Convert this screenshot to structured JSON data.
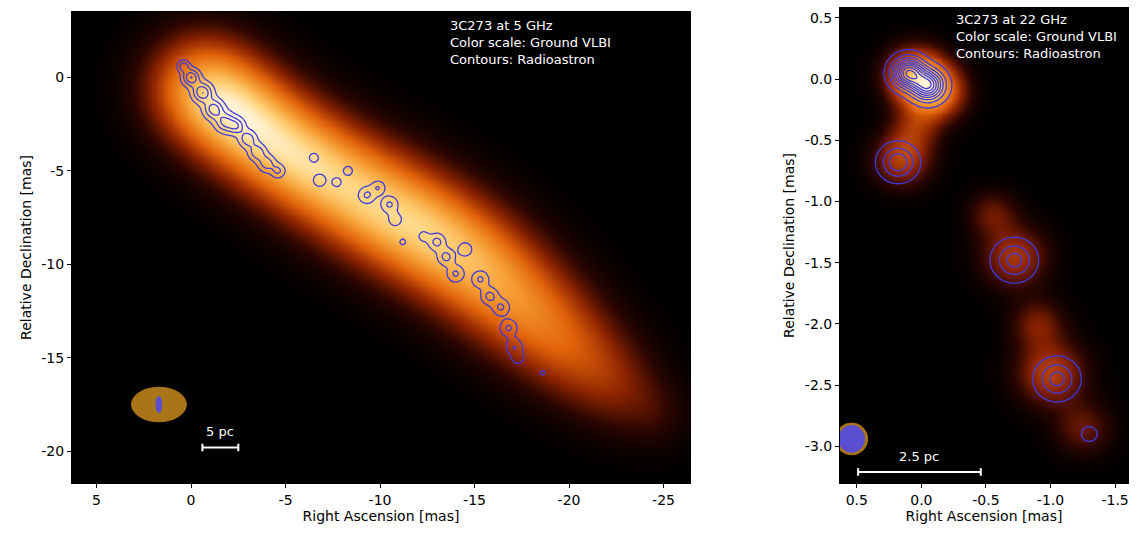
{
  "chart_data": [
    {
      "type": "heatmap",
      "annotations": [
        "3C273 at 5 GHz",
        "Color scale: Ground VLBI",
        "Contours: Radioastron"
      ],
      "annotation_position": {
        "ra": -13.6,
        "dec": 3.3
      },
      "x_label": "Right Ascension [mas]",
      "y_label": "Relative Declination [mas]",
      "xlim": [
        6.3,
        -26.4
      ],
      "ylim": [
        -21.7,
        3.5
      ],
      "xticks": [
        5,
        0,
        -5,
        -10,
        -15,
        -20,
        -25
      ],
      "yticks": [
        0,
        -5,
        -10,
        -15,
        -20
      ],
      "grid": false,
      "ground_vlbi": {
        "components": [
          {
            "ra": -0.5,
            "dec": -0.5,
            "size": 1.9,
            "flux": 1.0
          },
          {
            "ra": -2.5,
            "dec": -2.0,
            "size": 1.9,
            "flux": 0.95
          },
          {
            "ra": -4.5,
            "dec": -3.5,
            "size": 1.9,
            "flux": 0.85
          },
          {
            "ra": -6.5,
            "dec": -4.8,
            "size": 1.9,
            "flux": 0.75
          },
          {
            "ra": -8.5,
            "dec": -6.0,
            "size": 2.0,
            "flux": 0.72
          },
          {
            "ra": -10.5,
            "dec": -7.2,
            "size": 2.0,
            "flux": 0.72
          },
          {
            "ra": -12.5,
            "dec": -8.3,
            "size": 2.0,
            "flux": 0.72
          },
          {
            "ra": -14.5,
            "dec": -9.6,
            "size": 2.0,
            "flux": 0.7
          },
          {
            "ra": -16.5,
            "dec": -11.2,
            "size": 2.0,
            "flux": 0.65
          },
          {
            "ra": -18.5,
            "dec": -13.0,
            "size": 1.9,
            "flux": 0.55
          },
          {
            "ra": -20.5,
            "dec": -14.8,
            "size": 1.8,
            "flux": 0.45
          },
          {
            "ra": -22.5,
            "dec": -16.5,
            "size": 1.6,
            "flux": 0.3
          },
          {
            "ra": -24.5,
            "dec": -18.0,
            "size": 1.3,
            "flux": 0.15
          }
        ]
      },
      "radioastron": {
        "color": "#3c3cdc",
        "levels": {
          "start": 0.15,
          "end": 1.6,
          "step": 0.25
        },
        "components": [
          {
            "ra": 0.4,
            "dec": 0.6,
            "size": 0.2,
            "flux": 0.6
          },
          {
            "ra": 0.0,
            "dec": 0.0,
            "size": 0.3,
            "flux": 0.9
          },
          {
            "ra": -0.6,
            "dec": -0.8,
            "size": 0.35,
            "flux": 0.9
          },
          {
            "ra": -1.2,
            "dec": -1.7,
            "size": 0.35,
            "flux": 0.8
          },
          {
            "ra": -1.8,
            "dec": -2.4,
            "size": 0.35,
            "flux": 0.7
          },
          {
            "ra": -2.4,
            "dec": -2.6,
            "size": 0.3,
            "flux": 0.6
          },
          {
            "ra": -3.0,
            "dec": -3.3,
            "size": 0.3,
            "flux": 0.6
          },
          {
            "ra": -3.5,
            "dec": -4.0,
            "size": 0.3,
            "flux": 0.6
          },
          {
            "ra": -4.0,
            "dec": -4.6,
            "size": 0.3,
            "flux": 0.55
          },
          {
            "ra": -4.6,
            "dec": -5.0,
            "size": 0.25,
            "flux": 0.45
          },
          {
            "ra": -6.5,
            "dec": -4.3,
            "size": 0.2,
            "flux": 0.3
          },
          {
            "ra": -6.8,
            "dec": -5.5,
            "size": 0.25,
            "flux": 0.35
          },
          {
            "ra": -7.7,
            "dec": -5.6,
            "size": 0.2,
            "flux": 0.3
          },
          {
            "ra": -8.3,
            "dec": -5.0,
            "size": 0.2,
            "flux": 0.3
          },
          {
            "ra": -9.3,
            "dec": -6.3,
            "size": 0.3,
            "flux": 0.45
          },
          {
            "ra": -9.9,
            "dec": -5.9,
            "size": 0.25,
            "flux": 0.4
          },
          {
            "ra": -10.5,
            "dec": -6.8,
            "size": 0.3,
            "flux": 0.45
          },
          {
            "ra": -10.8,
            "dec": -7.6,
            "size": 0.25,
            "flux": 0.35
          },
          {
            "ra": -11.2,
            "dec": -8.8,
            "size": 0.15,
            "flux": 0.25
          },
          {
            "ra": -12.3,
            "dec": -8.5,
            "size": 0.2,
            "flux": 0.3
          },
          {
            "ra": -13.0,
            "dec": -8.8,
            "size": 0.3,
            "flux": 0.5
          },
          {
            "ra": -13.5,
            "dec": -9.6,
            "size": 0.3,
            "flux": 0.5
          },
          {
            "ra": -14.0,
            "dec": -10.5,
            "size": 0.3,
            "flux": 0.45
          },
          {
            "ra": -14.5,
            "dec": -9.2,
            "size": 0.25,
            "flux": 0.4
          },
          {
            "ra": -15.3,
            "dec": -10.8,
            "size": 0.3,
            "flux": 0.45
          },
          {
            "ra": -15.8,
            "dec": -11.7,
            "size": 0.3,
            "flux": 0.5
          },
          {
            "ra": -16.4,
            "dec": -12.3,
            "size": 0.3,
            "flux": 0.45
          },
          {
            "ra": -16.8,
            "dec": -13.4,
            "size": 0.3,
            "flux": 0.45
          },
          {
            "ra": -17.1,
            "dec": -14.4,
            "size": 0.3,
            "flux": 0.4
          },
          {
            "ra": -17.3,
            "dec": -15.0,
            "size": 0.25,
            "flux": 0.3
          },
          {
            "ra": -18.6,
            "dec": -15.8,
            "size": 0.12,
            "flux": 0.25
          }
        ]
      },
      "beams": {
        "ground": {
          "ra": 1.7,
          "dec": -17.5,
          "width": 2.9,
          "height": 1.85,
          "color": "#c8891e"
        },
        "radioastron": {
          "ra": 1.7,
          "dec": -17.5,
          "width": 0.3,
          "height": 0.85,
          "color": "#5a4fd0"
        }
      },
      "scale_bar": {
        "ra_start": -0.6,
        "ra_end": -2.5,
        "dec": -19.8,
        "label": "5 pc"
      }
    },
    {
      "type": "heatmap",
      "annotations": [
        "3C273 at 22 GHz",
        "Color scale: Ground VLBI",
        "Contours: Radioastron"
      ],
      "annotation_position": {
        "ra": -0.25,
        "dec": 0.56
      },
      "x_label": "Right Ascension [mas]",
      "y_label": "Relative Declination [mas]",
      "xlim": [
        0.63,
        -1.6
      ],
      "ylim": [
        -3.3,
        0.58
      ],
      "xticks": [
        0.5,
        {
          "value": 0,
          "label": "0.0"
        },
        -0.5,
        {
          "value": -1,
          "label": "-1.0"
        },
        -1.5
      ],
      "yticks": [
        0.5,
        {
          "value": 0,
          "label": "0.0"
        },
        -0.5,
        {
          "value": -1,
          "label": "-1.0"
        },
        -1.5,
        {
          "value": -2,
          "label": "-2.0"
        },
        -2.5,
        {
          "value": -3,
          "label": "-3.0"
        }
      ],
      "grid": false,
      "ground_vlbi": {
        "components": [
          {
            "ra": 0.05,
            "dec": 0.03,
            "size": 0.15,
            "flux": 1.0
          },
          {
            "ra": -0.1,
            "dec": -0.1,
            "size": 0.15,
            "flux": 1.0
          },
          {
            "ra": 0.05,
            "dec": -0.4,
            "size": 0.13,
            "flux": 0.35
          },
          {
            "ra": 0.15,
            "dec": -0.65,
            "size": 0.15,
            "flux": 0.55
          },
          {
            "ra": -0.55,
            "dec": -1.1,
            "size": 0.13,
            "flux": 0.3
          },
          {
            "ra": -0.72,
            "dec": -1.45,
            "size": 0.17,
            "flux": 0.5
          },
          {
            "ra": -0.9,
            "dec": -2.0,
            "size": 0.14,
            "flux": 0.35
          },
          {
            "ra": -1.0,
            "dec": -2.4,
            "size": 0.18,
            "flux": 0.55
          },
          {
            "ra": -1.25,
            "dec": -2.85,
            "size": 0.15,
            "flux": 0.3
          }
        ]
      },
      "radioastron": {
        "color": "#3c3cdc",
        "levels": {
          "start": 0.06,
          "end": 2.0,
          "step": 0.12
        },
        "components": [
          {
            "ra": 0.1,
            "dec": 0.05,
            "size": 0.08,
            "flux": 1.0
          },
          {
            "ra": -0.05,
            "dec": -0.05,
            "size": 0.08,
            "flux": 0.9
          },
          {
            "ra": 0.18,
            "dec": -0.68,
            "size": 0.09,
            "flux": 0.4
          },
          {
            "ra": -0.72,
            "dec": -1.48,
            "size": 0.1,
            "flux": 0.35
          },
          {
            "ra": -1.05,
            "dec": -2.45,
            "size": 0.1,
            "flux": 0.35
          },
          {
            "ra": -1.3,
            "dec": -2.9,
            "size": 0.06,
            "flux": 0.1
          }
        ]
      },
      "beams": {
        "ground": {
          "ra": 0.54,
          "dec": -2.94,
          "width": 0.25,
          "height": 0.26,
          "color": "#c8891e"
        },
        "radioastron": {
          "ra": 0.54,
          "dec": -2.94,
          "width": 0.2,
          "height": 0.22,
          "color": "#5a4fd0"
        }
      },
      "scale_bar": {
        "ra_start": 0.49,
        "ra_end": -0.46,
        "dec": -3.21,
        "label": "2.5 pc"
      }
    }
  ]
}
